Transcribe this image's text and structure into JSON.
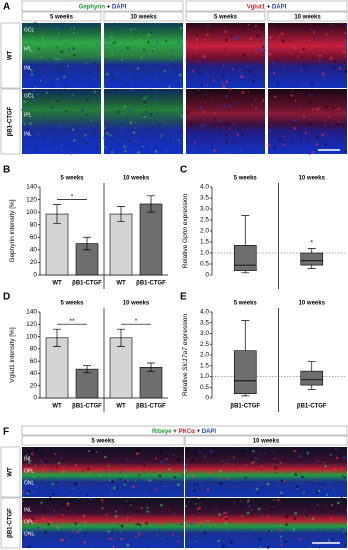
{
  "panel_a": {
    "label": "A",
    "stains": [
      [
        {
          "text": "Gephyrin",
          "color": "#1f9a2f"
        },
        {
          "text": " + ",
          "color": "#000000"
        },
        {
          "text": "DAPI",
          "color": "#2a3fc0"
        }
      ],
      [
        {
          "text": "Vglut1",
          "color": "#d0202a"
        },
        {
          "text": " + ",
          "color": "#000000"
        },
        {
          "text": "DAPI",
          "color": "#2a3fc0"
        }
      ]
    ],
    "timepoints": [
      "5 weeks",
      "10 weeks",
      "5 weeks",
      "10 weeks"
    ],
    "rows": [
      "WT",
      "βB1-CTGF"
    ],
    "layers": [
      "GCL",
      "IPL",
      "INL"
    ]
  },
  "chart_data": [
    {
      "type": "bar",
      "label": "B",
      "ylabel": [
        "Gephyrin intensity [%]"
      ],
      "groups": [
        "5 weeks",
        "10 weeks"
      ],
      "categories": [
        "WT",
        "βB1-CTGF",
        "WT",
        "βB1-CTGF"
      ],
      "values": [
        97,
        50,
        97,
        113
      ],
      "errors": [
        15,
        10,
        12,
        13
      ],
      "colors": [
        "#d4d4d4",
        "#6e6e6e",
        "#d4d4d4",
        "#6e6e6e"
      ],
      "significance": [
        "*",
        null
      ],
      "ylim": [
        0,
        140
      ],
      "yticks": [
        0,
        20,
        40,
        60,
        80,
        100,
        120,
        140
      ]
    },
    {
      "type": "box",
      "label": "C",
      "ylabel": [
        "Relative ",
        "Gphn",
        " expression"
      ],
      "groups": [
        "5 weeks",
        "10 weeks"
      ],
      "boxes": [
        {
          "min": 0.1,
          "q1": 0.2,
          "median": 0.45,
          "q3": 1.35,
          "max": 2.7
        },
        {
          "min": 0.3,
          "q1": 0.45,
          "median": 0.65,
          "q3": 1.0,
          "max": 1.2
        }
      ],
      "color": "#6e6e6e",
      "significance": [
        null,
        "*"
      ],
      "reference_line": 1,
      "ylim": [
        0,
        4
      ],
      "yticks": [
        0,
        {
          "value": 0.5,
          "label": "0.5"
        },
        {
          "value": 1,
          "label": "1.0"
        },
        {
          "value": 1.5,
          "label": "1.5"
        },
        {
          "value": 2,
          "label": "2.0"
        },
        {
          "value": 2.5,
          "label": "2.5"
        },
        {
          "value": 3,
          "label": "3.0"
        },
        {
          "value": 3.5,
          "label": "3.5"
        },
        {
          "value": 4,
          "label": "4.0"
        }
      ]
    },
    {
      "type": "bar",
      "label": "D",
      "ylabel": [
        "Vglut1 intensity [%]"
      ],
      "groups": [
        "5 weeks",
        "10 weeks"
      ],
      "categories": [
        "WT",
        "βB1-CTGF",
        "WT",
        "βB1-CTGF"
      ],
      "values": [
        98,
        47,
        98,
        50
      ],
      "errors": [
        14,
        6,
        14,
        7
      ],
      "colors": [
        "#d4d4d4",
        "#6e6e6e",
        "#d4d4d4",
        "#6e6e6e"
      ],
      "significance": [
        "**",
        "*"
      ],
      "ylim": [
        0,
        140
      ],
      "yticks": [
        0,
        20,
        40,
        60,
        80,
        100,
        120,
        140
      ]
    },
    {
      "type": "box",
      "label": "E",
      "ylabel": [
        "Relative ",
        "Slc17a7",
        " expression"
      ],
      "groups": [
        "5 weeks",
        "10 weeks"
      ],
      "categories": [
        "βB1-CTGF",
        "βB1-CTGF"
      ],
      "boxes": [
        {
          "min": 0.1,
          "q1": 0.2,
          "median": 0.8,
          "q3": 2.2,
          "max": 3.6
        },
        {
          "min": 0.4,
          "q1": 0.6,
          "median": 0.85,
          "q3": 1.25,
          "max": 1.7
        }
      ],
      "color": "#6e6e6e",
      "reference_line": 1,
      "ylim": [
        0,
        4
      ],
      "yticks": [
        0,
        {
          "value": 0.5,
          "label": "0.5"
        },
        {
          "value": 1,
          "label": "1.0"
        },
        {
          "value": 1.5,
          "label": "1.5"
        },
        {
          "value": 2,
          "label": "2.0"
        },
        {
          "value": 2.5,
          "label": "2.5"
        },
        {
          "value": 3,
          "label": "3.0"
        },
        {
          "value": 3.5,
          "label": "3.5"
        },
        {
          "value": 4,
          "label": "4.0"
        }
      ]
    }
  ],
  "panel_f": {
    "label": "F",
    "stain": [
      {
        "text": "Ribeye",
        "color": "#1f9a2f"
      },
      {
        "text": " + ",
        "color": "#000000"
      },
      {
        "text": "PKCα",
        "color": "#d0202a"
      },
      {
        "text": " + ",
        "color": "#000000"
      },
      {
        "text": "DAPI",
        "color": "#2a3fc0"
      }
    ],
    "timepoints": [
      "5 weeks",
      "10 weeks"
    ],
    "rows": [
      "WT",
      "βB1-CTGF"
    ],
    "layers": [
      "INL",
      "OPL",
      "ONL"
    ]
  }
}
